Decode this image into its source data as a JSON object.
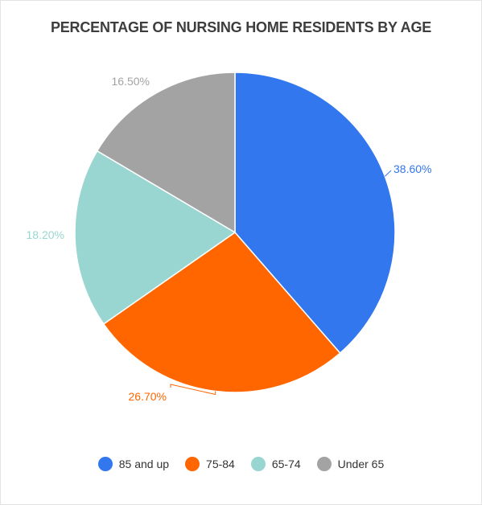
{
  "chart_data": {
    "type": "pie",
    "title": "PERCENTAGE OF NURSING HOME RESIDENTS BY AGE",
    "slices": [
      {
        "name": "85 and up",
        "value": 38.6,
        "label": "38.60%",
        "color": "#3377ee"
      },
      {
        "name": "75-84",
        "value": 26.7,
        "label": "26.70%",
        "color": "#ff6600"
      },
      {
        "name": "65-74",
        "value": 18.2,
        "label": "18.20%",
        "color": "#99d6d1"
      },
      {
        "name": "Under 65",
        "value": 16.5,
        "label": "16.50%",
        "color": "#a3a3a3"
      }
    ],
    "legend_position": "bottom"
  }
}
